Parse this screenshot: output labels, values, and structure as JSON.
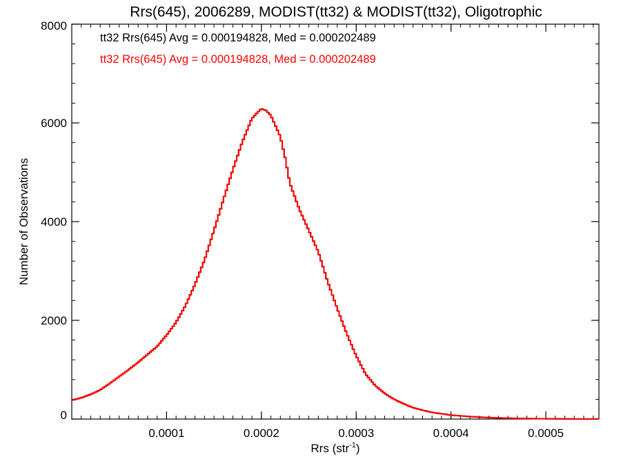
{
  "chart_data": {
    "type": "histogram",
    "title": "Rrs(645), 2006289, MODIST(tt32) & MODIST(tt32), Oligotrophic",
    "xlabel_main": "Rrs (str",
    "xlabel_sup": "-1",
    "xlabel_close": ")",
    "ylabel": "Number of Observations",
    "xlim": [
      0.0,
      0.000556
    ],
    "ylim": [
      0,
      8000
    ],
    "x_ticks": [
      0.0001,
      0.0002,
      0.0003,
      0.0004,
      0.0005
    ],
    "x_tick_labels": [
      "0.0001",
      "0.0002",
      "0.0003",
      "0.0004",
      "0.0005"
    ],
    "x_minor_step": 1e-05,
    "y_ticks": [
      0,
      2000,
      4000,
      6000,
      8000
    ],
    "y_tick_labels": [
      "0",
      "2000",
      "4000",
      "6000",
      "8000"
    ],
    "y_minor_step": 400,
    "annotations": [
      {
        "text": "tt32 Rrs(645) Avg = 0.000194828, Med = 0.000202489",
        "color": "#000000"
      },
      {
        "text": "tt32 Rrs(645) Avg = 0.000194828, Med = 0.000202489",
        "color": "#ff0000"
      }
    ],
    "series": [
      {
        "color": "#000000",
        "bin_width": 2e-06,
        "x": [
          0,
          1e-05,
          2e-05,
          3e-05,
          4e-05,
          5e-05,
          6e-05,
          7e-05,
          8e-05,
          9e-05,
          0.0001,
          0.00011,
          0.00012,
          0.00013,
          0.00014,
          0.00015,
          0.00016,
          0.00017,
          0.00018,
          0.00019,
          0.0002,
          0.000205,
          0.00021,
          0.00022,
          0.000225,
          0.00023,
          0.00024,
          0.00025,
          0.00026,
          0.00027,
          0.00028,
          0.00029,
          0.0003,
          0.00031,
          0.00032,
          0.00033,
          0.00034,
          0.00035,
          0.00036,
          0.00037,
          0.00038,
          0.0004,
          0.00042,
          0.00044,
          0.00046,
          0.00048,
          0.0005,
          0.00052,
          0.000556
        ],
        "y": [
          380,
          430,
          500,
          590,
          720,
          860,
          1000,
          1150,
          1310,
          1470,
          1700,
          1960,
          2300,
          2730,
          3220,
          3820,
          4450,
          5060,
          5620,
          6090,
          6290,
          6250,
          6150,
          5720,
          5300,
          4780,
          4250,
          3820,
          3390,
          2780,
          2240,
          1730,
          1280,
          910,
          680,
          520,
          400,
          310,
          230,
          180,
          135,
          80,
          50,
          30,
          18,
          10,
          6,
          3,
          1
        ]
      },
      {
        "color": "#ff0000",
        "bin_width": 2e-06,
        "x": [
          0,
          1e-05,
          2e-05,
          3e-05,
          4e-05,
          5e-05,
          6e-05,
          7e-05,
          8e-05,
          9e-05,
          0.0001,
          0.00011,
          0.00012,
          0.00013,
          0.00014,
          0.00015,
          0.00016,
          0.00017,
          0.00018,
          0.00019,
          0.0002,
          0.000205,
          0.00021,
          0.00022,
          0.000225,
          0.00023,
          0.00024,
          0.00025,
          0.00026,
          0.00027,
          0.00028,
          0.00029,
          0.0003,
          0.00031,
          0.00032,
          0.00033,
          0.00034,
          0.00035,
          0.00036,
          0.00037,
          0.00038,
          0.0004,
          0.00042,
          0.00044,
          0.00046,
          0.00048,
          0.0005,
          0.00052,
          0.000556
        ],
        "y": [
          380,
          430,
          500,
          590,
          720,
          860,
          1000,
          1150,
          1310,
          1470,
          1700,
          1960,
          2300,
          2730,
          3220,
          3820,
          4450,
          5060,
          5620,
          6090,
          6290,
          6250,
          6150,
          5720,
          5300,
          4780,
          4250,
          3820,
          3390,
          2780,
          2240,
          1730,
          1280,
          910,
          680,
          520,
          400,
          310,
          230,
          180,
          135,
          80,
          50,
          30,
          18,
          10,
          6,
          3,
          1
        ]
      }
    ]
  }
}
